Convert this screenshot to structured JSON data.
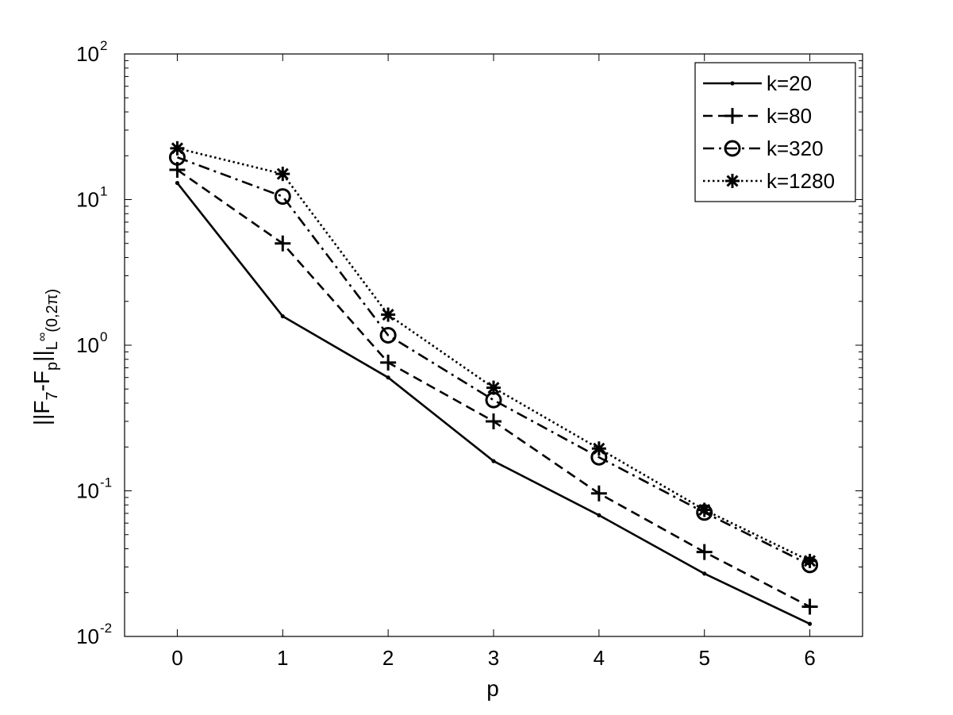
{
  "chart_data": {
    "type": "line",
    "xlabel": "p",
    "ylabel_parts": {
      "text1": "||F",
      "sub1": "7",
      "text2": "-F",
      "sub2": "p",
      "text3": "||",
      "sub3": "L",
      "sup3": "∞",
      "sub4": "(0,2π)"
    },
    "x": [
      0,
      1,
      2,
      3,
      4,
      5,
      6
    ],
    "xlim": [
      -0.5,
      6.5
    ],
    "xticks": [
      "0",
      "1",
      "2",
      "3",
      "4",
      "5",
      "6"
    ],
    "ylim": [
      0.01,
      100
    ],
    "yscale": "log",
    "yticks": [
      {
        "base": "10",
        "exp": "-2",
        "value": 0.01
      },
      {
        "base": "10",
        "exp": "-1",
        "value": 0.1
      },
      {
        "base": "10",
        "exp": "0",
        "value": 1
      },
      {
        "base": "10",
        "exp": "1",
        "value": 10
      },
      {
        "base": "10",
        "exp": "2",
        "value": 100
      }
    ],
    "grid": false,
    "legend_position": "top-right",
    "series": [
      {
        "name": "k=20",
        "line_style": "solid",
        "marker": "dot",
        "color": "#000000",
        "values": [
          13.0,
          1.58,
          0.6,
          0.16,
          0.068,
          0.027,
          0.0122
        ]
      },
      {
        "name": "k=80",
        "line_style": "dashed",
        "marker": "plus",
        "color": "#000000",
        "values": [
          16.0,
          5.0,
          0.76,
          0.3,
          0.096,
          0.038,
          0.016
        ]
      },
      {
        "name": "k=320",
        "line_style": "dashdot",
        "marker": "circle",
        "color": "#000000",
        "values": [
          19.5,
          10.5,
          1.17,
          0.42,
          0.17,
          0.071,
          0.031
        ]
      },
      {
        "name": "k=1280",
        "line_style": "dotted",
        "marker": "asterisk",
        "color": "#000000",
        "values": [
          22.5,
          15.0,
          1.62,
          0.51,
          0.195,
          0.074,
          0.033
        ]
      }
    ]
  }
}
